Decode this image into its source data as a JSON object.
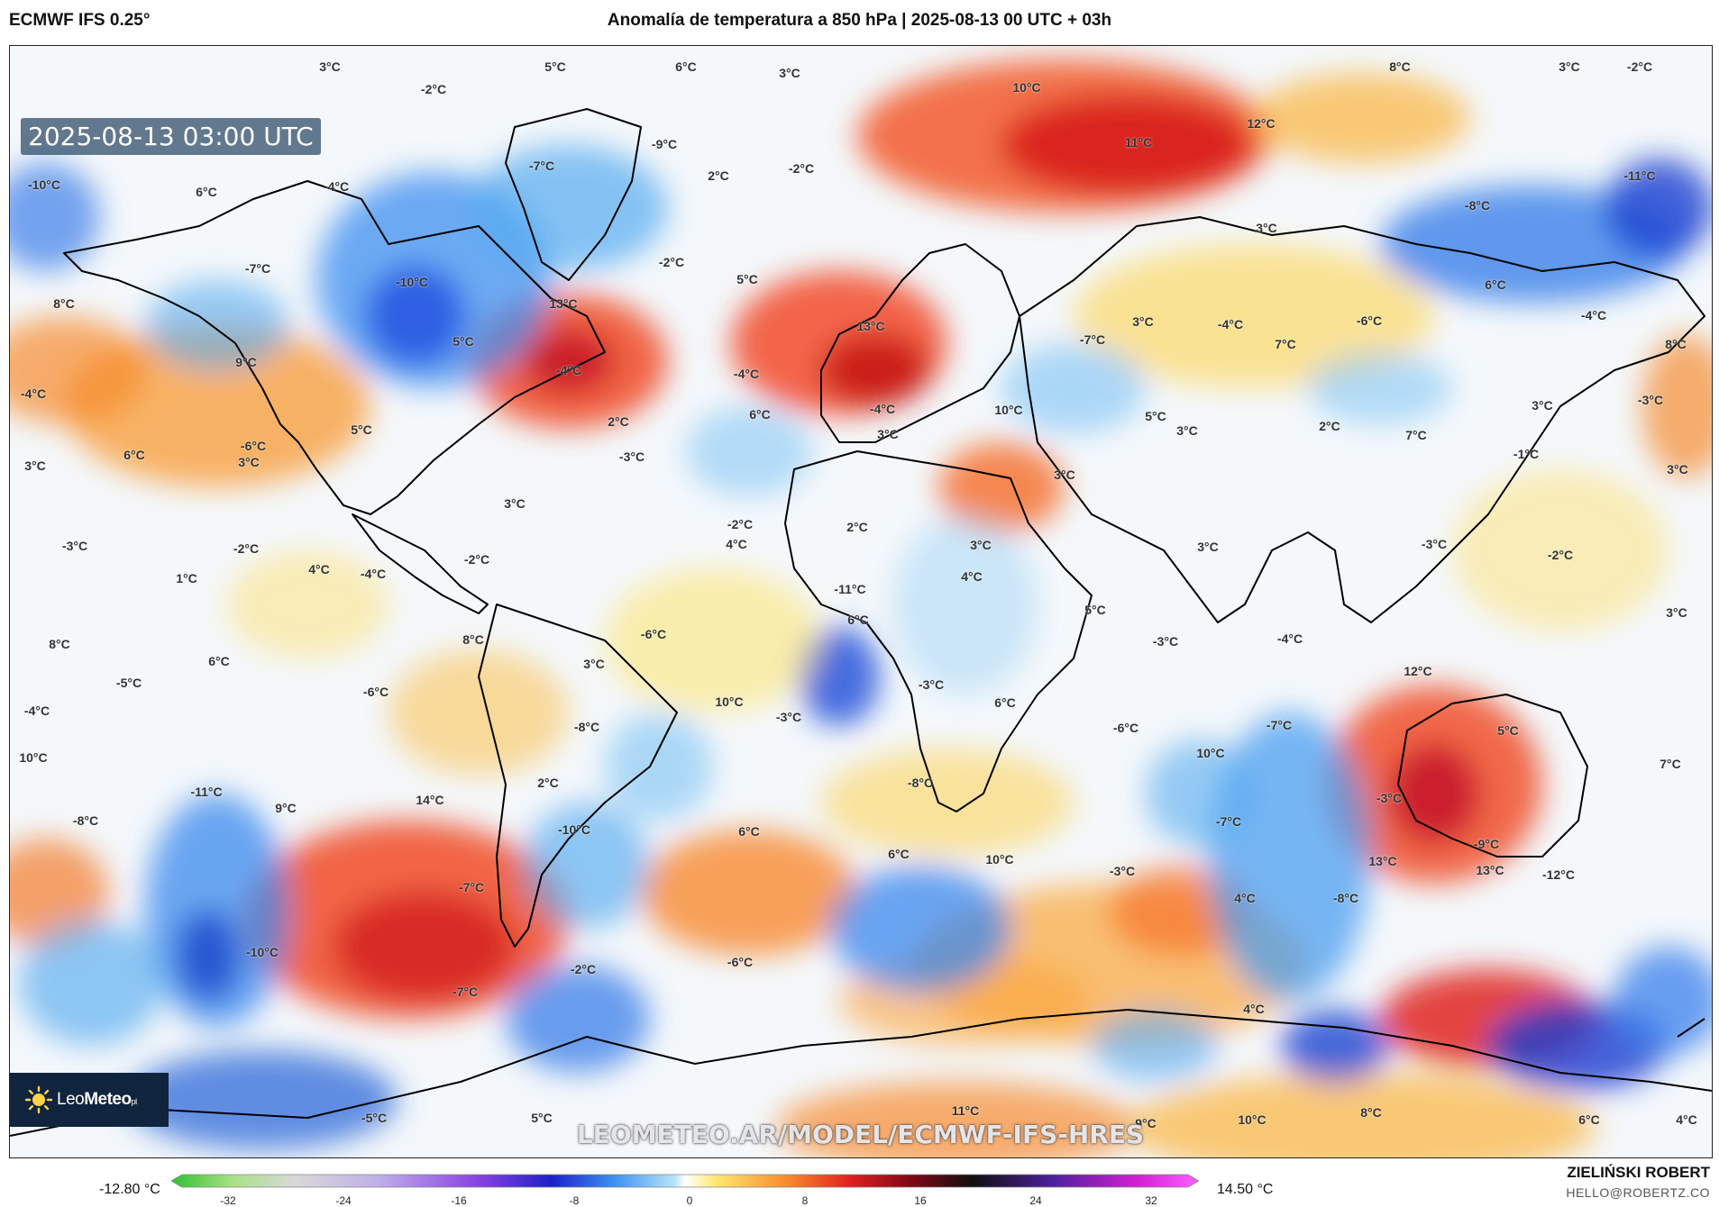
{
  "header": {
    "model": "ECMWF IFS 0.25°",
    "title": "Anomalía de temperatura a 850 hPa | 2025-08-13 00 UTC + 03h"
  },
  "map": {
    "timestamp": "2025-08-13 03:00 UTC",
    "watermark": "LEOMETEO.AR/MODEL/ECMWF-IFS-HRES",
    "logo": {
      "light": "Leo",
      "bold": "Meteo",
      "suffix": "pl"
    },
    "labels": [
      {
        "t": "3°C"
      },
      {
        "t": "5°C"
      },
      {
        "t": "6°C"
      },
      {
        "t": "3°C"
      },
      {
        "t": "10°C"
      },
      {
        "t": "8°C"
      },
      {
        "t": "3°C"
      },
      {
        "t": "-2°C"
      },
      {
        "t": "-2°C"
      },
      {
        "t": "-9°C"
      },
      {
        "t": "12°C"
      },
      {
        "t": "11°C"
      },
      {
        "t": "-10°C"
      },
      {
        "t": "-7°C"
      },
      {
        "t": "2°C"
      },
      {
        "t": "-2°C"
      },
      {
        "t": "-11°C"
      },
      {
        "t": "6°C"
      },
      {
        "t": "-4°C"
      },
      {
        "t": "-8°C"
      },
      {
        "t": "3°C"
      },
      {
        "t": "-7°C"
      },
      {
        "t": "-10°C"
      },
      {
        "t": "-2°C"
      },
      {
        "t": "5°C"
      },
      {
        "t": "6°C"
      },
      {
        "t": "8°C"
      },
      {
        "t": "13°C"
      },
      {
        "t": "13°C"
      },
      {
        "t": "3°C"
      },
      {
        "t": "-4°C"
      },
      {
        "t": "-6°C"
      },
      {
        "t": "-4°C"
      },
      {
        "t": "5°C"
      },
      {
        "t": "-7°C"
      },
      {
        "t": "7°C"
      },
      {
        "t": "8°C"
      },
      {
        "t": "9°C"
      },
      {
        "t": "-4°C"
      },
      {
        "t": "-4°C"
      },
      {
        "t": "-4°C"
      },
      {
        "t": "6°C"
      },
      {
        "t": "-4°C"
      },
      {
        "t": "10°C"
      },
      {
        "t": "3°C"
      },
      {
        "t": "-3°C"
      },
      {
        "t": "5°C"
      },
      {
        "t": "2°C"
      },
      {
        "t": "3°C"
      },
      {
        "t": "5°C"
      },
      {
        "t": "3°C"
      },
      {
        "t": "2°C"
      },
      {
        "t": "7°C"
      },
      {
        "t": "-6°C"
      },
      {
        "t": "6°C"
      },
      {
        "t": "3°C"
      },
      {
        "t": "-3°C"
      },
      {
        "t": "-1°C"
      },
      {
        "t": "3°C"
      },
      {
        "t": "3°C"
      },
      {
        "t": "3°C"
      },
      {
        "t": "3°C"
      },
      {
        "t": "-2°C"
      },
      {
        "t": "4°C"
      },
      {
        "t": "2°C"
      },
      {
        "t": "-3°C"
      },
      {
        "t": "-2°C"
      },
      {
        "t": "-2°C"
      },
      {
        "t": "4°C"
      },
      {
        "t": "-4°C"
      },
      {
        "t": "1°C"
      },
      {
        "t": "-11°C"
      },
      {
        "t": "3°C"
      },
      {
        "t": "4°C"
      },
      {
        "t": "3°C"
      },
      {
        "t": "-3°C"
      },
      {
        "t": "-2°C"
      },
      {
        "t": "6°C"
      },
      {
        "t": "5°C"
      },
      {
        "t": "-3°C"
      },
      {
        "t": "-4°C"
      },
      {
        "t": "3°C"
      },
      {
        "t": "8°C"
      },
      {
        "t": "8°C"
      },
      {
        "t": "6°C"
      },
      {
        "t": "-6°C"
      },
      {
        "t": "3°C"
      },
      {
        "t": "12°C"
      },
      {
        "t": "-5°C"
      },
      {
        "t": "-6°C"
      },
      {
        "t": "-3°C"
      },
      {
        "t": "6°C"
      },
      {
        "t": "-4°C"
      },
      {
        "t": "10°C"
      },
      {
        "t": "-3°C"
      },
      {
        "t": "-8°C"
      },
      {
        "t": "-6°C"
      },
      {
        "t": "-7°C"
      },
      {
        "t": "5°C"
      },
      {
        "t": "10°C"
      },
      {
        "t": "-11°C"
      },
      {
        "t": "14°C"
      },
      {
        "t": "2°C"
      },
      {
        "t": "10°C"
      },
      {
        "t": "7°C"
      },
      {
        "t": "9°C"
      },
      {
        "t": "-8°C"
      },
      {
        "t": "-8°C"
      },
      {
        "t": "-3°C"
      },
      {
        "t": "-10°C"
      },
      {
        "t": "6°C"
      },
      {
        "t": "-7°C"
      },
      {
        "t": "-9°C"
      },
      {
        "t": "6°C"
      },
      {
        "t": "10°C"
      },
      {
        "t": "13°C"
      },
      {
        "t": "13°C"
      },
      {
        "t": "-12°C"
      },
      {
        "t": "-7°C"
      },
      {
        "t": "-3°C"
      },
      {
        "t": "4°C"
      },
      {
        "t": "-8°C"
      },
      {
        "t": "-2°C"
      },
      {
        "t": "-7°C"
      },
      {
        "t": "-10°C"
      },
      {
        "t": "-6°C"
      },
      {
        "t": "4°C"
      },
      {
        "t": "-5°C"
      },
      {
        "t": "5°C"
      },
      {
        "t": "11°C"
      },
      {
        "t": "9°C"
      },
      {
        "t": "10°C"
      },
      {
        "t": "8°C"
      },
      {
        "t": "6°C"
      },
      {
        "t": "4°C"
      }
    ]
  },
  "legend": {
    "min": "-12.80 °C",
    "max": "14.50 °C",
    "ticks": [
      "-32",
      "-24",
      "-16",
      "-8",
      "0",
      "8",
      "16",
      "24",
      "32"
    ]
  },
  "credits": {
    "author": "ZIELIŃSKI ROBERT",
    "email": "HELLO@ROBERTZ.CO"
  },
  "colors": {
    "frame": "#222222",
    "logo_bg": "#10243e",
    "watermark": "#ffffff"
  }
}
